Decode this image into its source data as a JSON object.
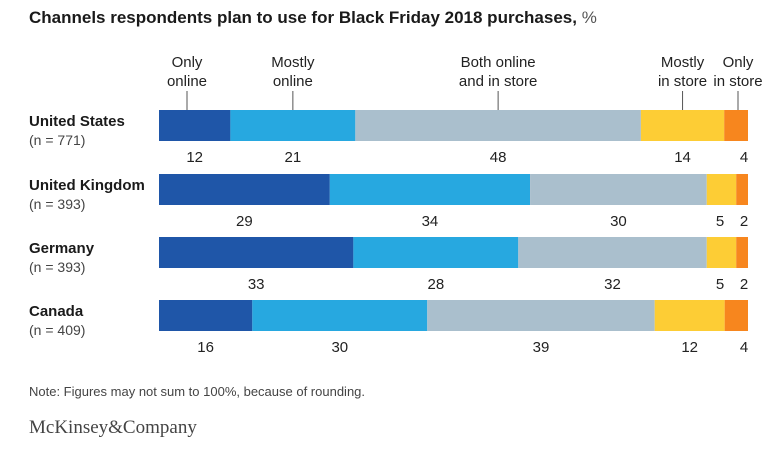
{
  "title": "Channels respondents plan to use for Black Friday 2018 purchases,",
  "title_unit": "%",
  "note": "Note: Figures may not sum to 100%, because of rounding.",
  "brand": "McKinsey&Company",
  "colors": [
    "#1f56a8",
    "#27a8e0",
    "#aabfcd",
    "#fdcd35",
    "#f7861e"
  ],
  "chart_data": {
    "type": "bar",
    "orientation": "horizontal",
    "stacked": true,
    "unit": "%",
    "categories": [
      {
        "name": "United States",
        "n": "(n = 771)"
      },
      {
        "name": "United Kingdom",
        "n": "(n = 393)"
      },
      {
        "name": "Germany",
        "n": "(n = 393)"
      },
      {
        "name": "Canada",
        "n": "(n = 409)"
      }
    ],
    "series": [
      {
        "name": [
          "Only",
          "online"
        ],
        "values": [
          12,
          29,
          33,
          16
        ]
      },
      {
        "name": [
          "Mostly",
          "online"
        ],
        "values": [
          21,
          34,
          28,
          30
        ]
      },
      {
        "name": [
          "Both online",
          "and in store"
        ],
        "values": [
          48,
          30,
          32,
          39
        ]
      },
      {
        "name": [
          "Mostly",
          "in store"
        ],
        "values": [
          14,
          5,
          5,
          12
        ]
      },
      {
        "name": [
          "Only",
          "in store"
        ],
        "values": [
          4,
          2,
          2,
          4
        ]
      }
    ]
  }
}
